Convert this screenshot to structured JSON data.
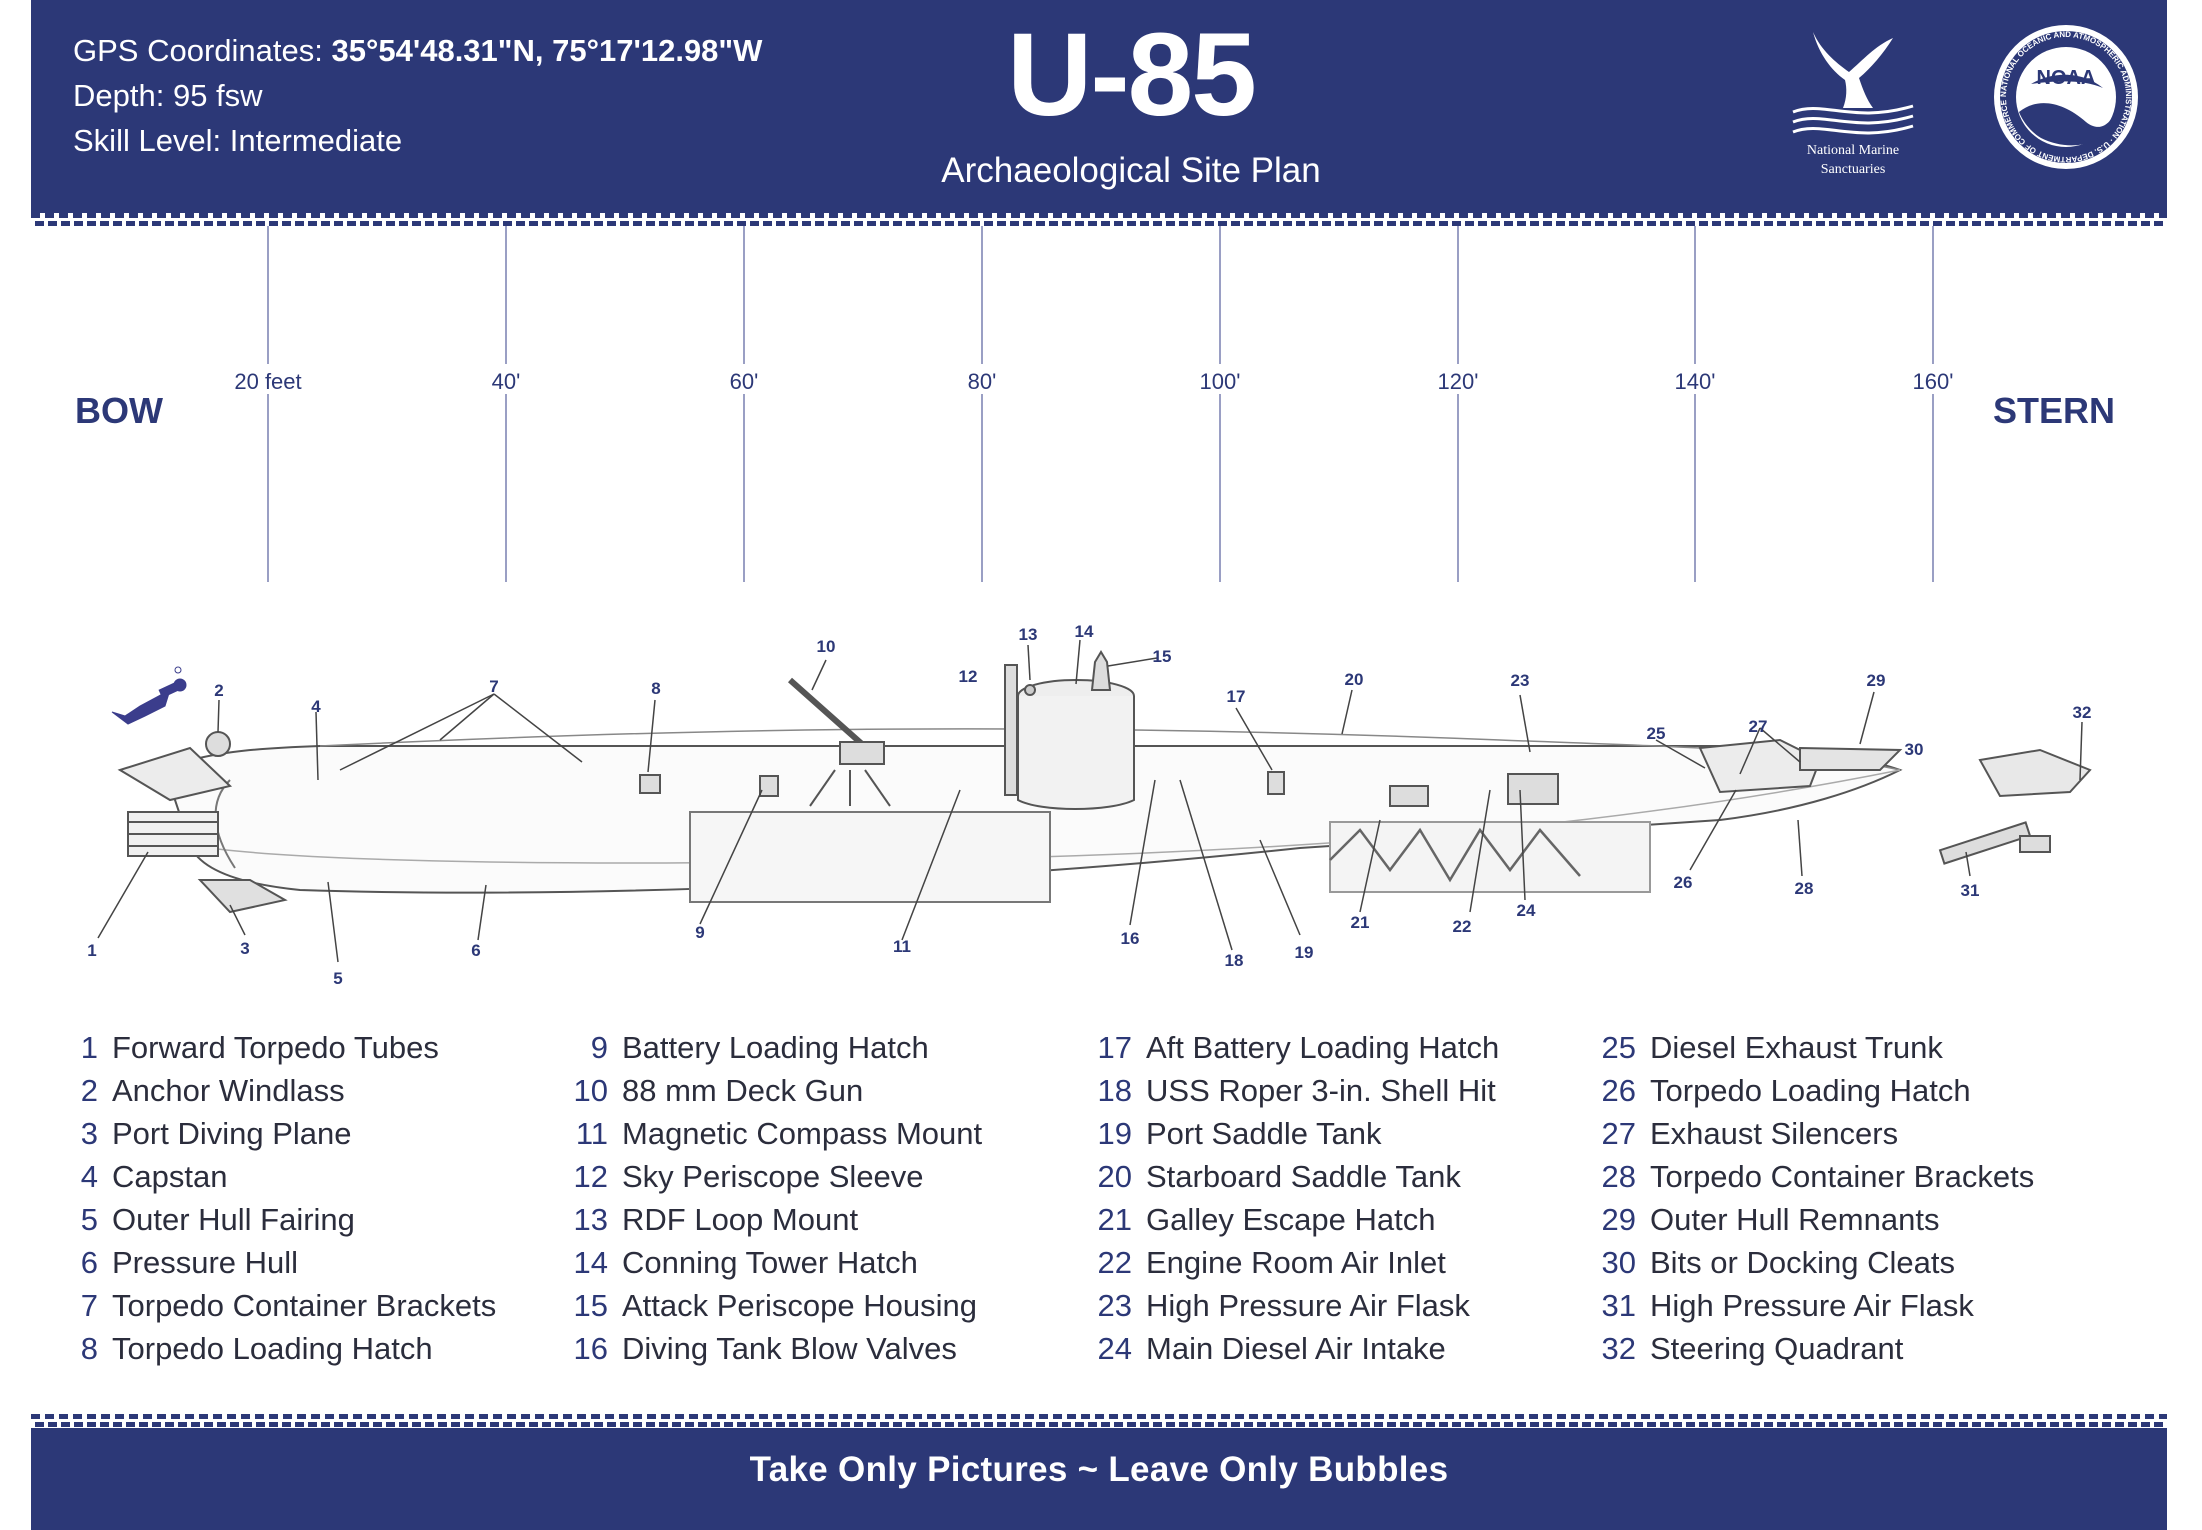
{
  "header": {
    "gps_label": "GPS Coordinates:",
    "gps_value": "35°54'48.31\"N, 75°17'12.98\"W",
    "depth": "Depth: 95 fsw",
    "skill": "Skill Level: Intermediate",
    "title": "U-85",
    "subtitle": "Archaeological Site Plan",
    "nms_line1": "National Marine",
    "nms_line2": "Sanctuaries",
    "noaa_text": "NOAA",
    "noaa_ring_text": "NATIONAL OCEANIC AND ATMOSPHERIC ADMINISTRATION · U.S. DEPARTMENT OF COMMERCE"
  },
  "diagram": {
    "bow_label": "BOW",
    "stern_label": "STERN",
    "scale_marks": [
      "20 feet",
      "40'",
      "60'",
      "80'",
      "100'",
      "120'",
      "140'",
      "160'"
    ]
  },
  "legend": [
    {
      "num": "1",
      "label": "Forward Torpedo Tubes"
    },
    {
      "num": "2",
      "label": "Anchor Windlass"
    },
    {
      "num": "3",
      "label": "Port Diving Plane"
    },
    {
      "num": "4",
      "label": "Capstan"
    },
    {
      "num": "5",
      "label": "Outer Hull Fairing"
    },
    {
      "num": "6",
      "label": "Pressure Hull"
    },
    {
      "num": "7",
      "label": "Torpedo Container Brackets"
    },
    {
      "num": "8",
      "label": "Torpedo Loading Hatch"
    },
    {
      "num": "9",
      "label": "Battery Loading Hatch"
    },
    {
      "num": "10",
      "label": "88 mm Deck Gun"
    },
    {
      "num": "11",
      "label": "Magnetic Compass Mount"
    },
    {
      "num": "12",
      "label": "Sky Periscope Sleeve"
    },
    {
      "num": "13",
      "label": "RDF Loop Mount"
    },
    {
      "num": "14",
      "label": "Conning Tower Hatch"
    },
    {
      "num": "15",
      "label": "Attack Periscope Housing"
    },
    {
      "num": "16",
      "label": "Diving Tank Blow Valves"
    },
    {
      "num": "17",
      "label": "Aft Battery Loading Hatch"
    },
    {
      "num": "18",
      "label": "USS Roper 3-in. Shell Hit"
    },
    {
      "num": "19",
      "label": "Port Saddle Tank"
    },
    {
      "num": "20",
      "label": "Starboard Saddle Tank"
    },
    {
      "num": "21",
      "label": "Galley Escape Hatch"
    },
    {
      "num": "22",
      "label": "Engine Room Air Inlet"
    },
    {
      "num": "23",
      "label": "High Pressure Air Flask"
    },
    {
      "num": "24",
      "label": "Main Diesel Air Intake"
    },
    {
      "num": "25",
      "label": "Diesel Exhaust Trunk"
    },
    {
      "num": "26",
      "label": "Torpedo Loading Hatch"
    },
    {
      "num": "27",
      "label": "Exhaust Silencers"
    },
    {
      "num": "28",
      "label": "Torpedo Container Brackets"
    },
    {
      "num": "29",
      "label": "Outer Hull Remnants"
    },
    {
      "num": "30",
      "label": "Bits or Docking Cleats"
    },
    {
      "num": "31",
      "label": "High Pressure Air Flask"
    },
    {
      "num": "32",
      "label": "Steering Quadrant"
    }
  ],
  "footer": {
    "motto": "Take Only Pictures ~ Leave Only Bubbles"
  }
}
